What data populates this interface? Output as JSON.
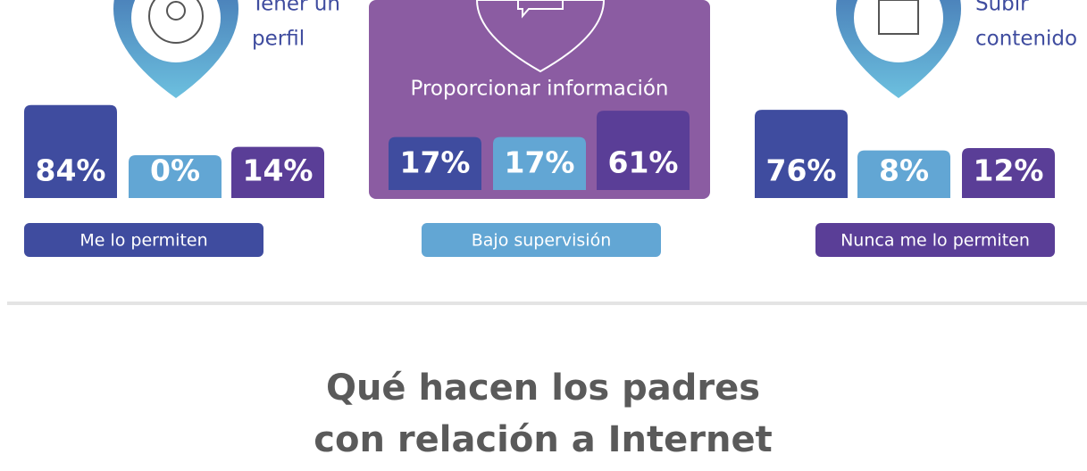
{
  "chart_data": {
    "type": "bar",
    "categories": [
      [
        "Tener un",
        "perfil"
      ],
      [
        "Proporcionar información"
      ],
      [
        "Subir",
        "contenido"
      ]
    ],
    "series": [
      {
        "name": "Me lo permiten",
        "color": "#3f4c9f",
        "values": [
          84,
          17,
          76
        ],
        "value_labels": [
          "84%",
          "17%",
          "76%"
        ]
      },
      {
        "name": "Bajo supervisión",
        "color": "#62a6d4",
        "values": [
          0,
          17,
          8
        ],
        "value_labels": [
          "0%",
          "17%",
          "8%"
        ]
      },
      {
        "name": "Nunca me lo permiten",
        "color": "#5a3e97",
        "values": [
          14,
          61,
          12
        ],
        "value_labels": [
          "14%",
          "61%",
          "12%"
        ]
      }
    ]
  },
  "heading": [
    "Qué hacen los padres",
    "con relación a Internet"
  ]
}
